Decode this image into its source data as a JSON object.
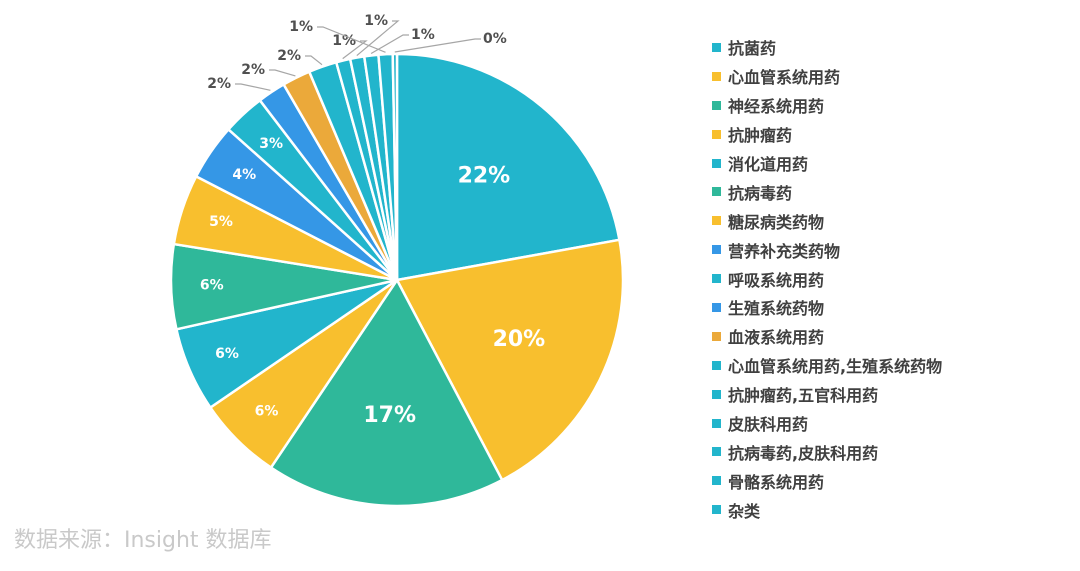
{
  "chart_data": {
    "type": "pie",
    "categories": [
      "抗菌药",
      "心血管系统用药",
      "神经系统用药",
      "抗肿瘤药",
      "消化道用药",
      "抗病毒药",
      "糖尿病类药物",
      "营养补充类药物",
      "呼吸系统用药",
      "生殖系统药物",
      "血液系统用药",
      "心血管系统用药,生殖系统药物",
      "抗肿瘤药,五官科用药",
      "皮肤科用药",
      "抗病毒药,皮肤科用药",
      "骨骼系统用药",
      "杂类"
    ],
    "values": [
      22,
      20,
      17,
      6,
      6,
      6,
      5,
      4,
      3,
      2,
      2,
      2,
      1,
      1,
      1,
      1,
      0.3
    ],
    "value_labels": [
      "22%",
      "20%",
      "17%",
      "6%",
      "6%",
      "6%",
      "5%",
      "4%",
      "3%",
      "2%",
      "2%",
      "2%",
      "1%",
      "1%",
      "1%",
      "1%",
      "0%"
    ],
    "colors": [
      "#22b5cc",
      "#f8bf2e",
      "#2fb89a",
      "#f8bf2e",
      "#22b5cc",
      "#2fb89a",
      "#f8bf2e",
      "#3597e6",
      "#22b5cc",
      "#3597e6",
      "#eba93a",
      "#22b5cc",
      "#22b5cc",
      "#22b5cc",
      "#22b5cc",
      "#22b5cc",
      "#22b5cc"
    ],
    "start_angle_deg": 0,
    "direction": "clockwise",
    "inside_label_count": 9,
    "legend_position": "right"
  },
  "source_note": "数据来源：Insight 数据库"
}
